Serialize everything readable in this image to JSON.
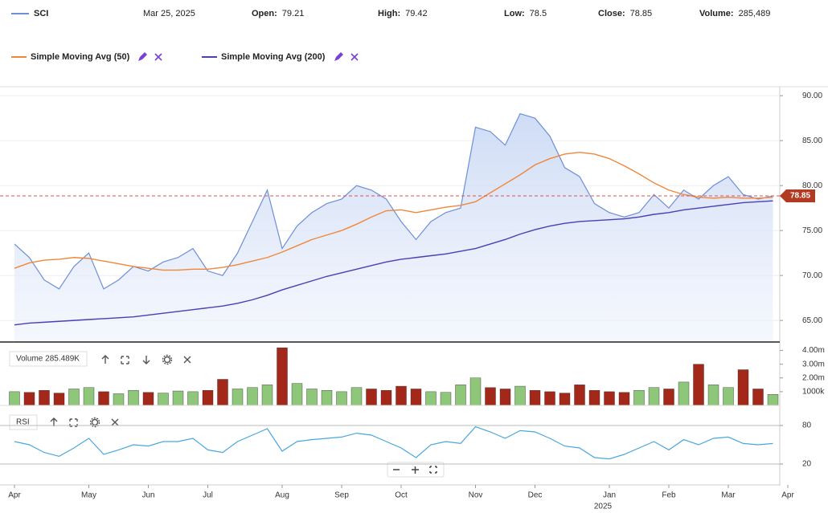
{
  "header": {
    "date": "Mar 25, 2025",
    "fields": [
      {
        "label": "Open:",
        "value": 79.21
      },
      {
        "label": "High:",
        "value": 79.42
      },
      {
        "label": "Low:",
        "value": 78.5
      },
      {
        "label": "Close:",
        "value": 78.85
      },
      {
        "label": "Volume:",
        "value": 285489,
        "value_label": "285,489"
      }
    ]
  },
  "chart_data": [
    {
      "type": "line",
      "ylim": [
        62.6,
        91
      ],
      "yticks": [
        {
          "value": 65,
          "label": "65.00"
        },
        {
          "value": 70,
          "label": "70.00"
        },
        {
          "value": 75,
          "label": "75.00"
        },
        {
          "value": 80,
          "label": "80.00"
        },
        {
          "value": 85,
          "label": "85.00"
        },
        {
          "value": 90,
          "label": "90.00"
        }
      ],
      "grid": true,
      "series": [
        {
          "name": "SCI",
          "color": "#6d8fd8",
          "area": true,
          "values": [
            73.5,
            72.0,
            69.5,
            68.5,
            71.0,
            72.5,
            68.5,
            69.5,
            71.0,
            70.5,
            71.5,
            72.0,
            73.0,
            70.5,
            70.0,
            72.5,
            76.0,
            79.5,
            73.0,
            75.5,
            77.0,
            78.0,
            78.5,
            80.0,
            79.5,
            78.5,
            76.0,
            74.0,
            76.0,
            77.0,
            77.5,
            86.5,
            86.0,
            84.5,
            88.0,
            87.5,
            85.5,
            82.0,
            81.0,
            78.0,
            77.0,
            76.5,
            77.0,
            79.0,
            77.5,
            79.5,
            78.5,
            80.0,
            81.0,
            79.0,
            78.5,
            78.85,
            null
          ]
        },
        {
          "name": "Simple Moving Avg (50)",
          "color": "#f0873a",
          "values": [
            70.8,
            71.4,
            71.7,
            71.8,
            72.0,
            71.9,
            71.6,
            71.3,
            71.0,
            70.8,
            70.6,
            70.6,
            70.7,
            70.7,
            70.9,
            71.2,
            71.6,
            72.0,
            72.6,
            73.3,
            74.0,
            74.5,
            75.0,
            75.7,
            76.5,
            77.2,
            77.3,
            77.0,
            77.3,
            77.6,
            77.8,
            78.2,
            79.2,
            80.2,
            81.2,
            82.3,
            83.0,
            83.5,
            83.7,
            83.5,
            83.0,
            82.2,
            81.3,
            80.3,
            79.5,
            79.0,
            78.7,
            78.6,
            78.7,
            78.6,
            78.6,
            78.7,
            null
          ]
        },
        {
          "name": "Simple Moving Avg (200)",
          "color": "#4a3fb3",
          "values": [
            64.5,
            64.7,
            64.8,
            64.9,
            65.0,
            65.1,
            65.2,
            65.3,
            65.4,
            65.6,
            65.8,
            66.0,
            66.2,
            66.4,
            66.6,
            66.9,
            67.3,
            67.8,
            68.4,
            68.9,
            69.4,
            69.9,
            70.3,
            70.7,
            71.1,
            71.5,
            71.8,
            72.0,
            72.2,
            72.4,
            72.7,
            73.0,
            73.5,
            74.0,
            74.6,
            75.1,
            75.5,
            75.8,
            76.0,
            76.1,
            76.2,
            76.3,
            76.5,
            76.8,
            77.0,
            77.3,
            77.5,
            77.7,
            77.9,
            78.1,
            78.2,
            78.3,
            null
          ]
        }
      ]
    },
    {
      "type": "bar",
      "title": "Volume 285.489K",
      "ylim": [
        0,
        4500000
      ],
      "up_color": "#8ec67a",
      "down_color": "#a3281a",
      "yticks": [
        {
          "value": 1000000,
          "label": "1000k"
        },
        {
          "value": 2000000,
          "label": "2.00m"
        },
        {
          "value": 3000000,
          "label": "3.00m"
        },
        {
          "value": 4000000,
          "label": "4.00m"
        }
      ],
      "values": [
        1000000,
        950000,
        1100000,
        900000,
        1200000,
        1300000,
        1000000,
        850000,
        1100000,
        950000,
        900000,
        1050000,
        1000000,
        1100000,
        1900000,
        1200000,
        1300000,
        1500000,
        4200000,
        1600000,
        1200000,
        1100000,
        1000000,
        1300000,
        1200000,
        1100000,
        1400000,
        1200000,
        1000000,
        950000,
        1500000,
        2000000,
        1300000,
        1200000,
        1400000,
        1100000,
        1000000,
        900000,
        1500000,
        1100000,
        1000000,
        950000,
        1100000,
        1300000,
        1200000,
        1700000,
        3000000,
        1500000,
        1300000,
        2600000,
        1200000,
        800000,
        null
      ]
    },
    {
      "type": "line",
      "title": "RSI",
      "ylim": [
        -7.5,
        95
      ],
      "yticks": [
        20,
        80
      ],
      "grid": true,
      "categories": [
        "Apr",
        null,
        null,
        null,
        null,
        "May",
        null,
        null,
        null,
        "Jun",
        null,
        null,
        null,
        "Jul",
        null,
        null,
        null,
        null,
        "Aug",
        null,
        null,
        null,
        "Sep",
        null,
        null,
        null,
        "Oct",
        null,
        null,
        null,
        null,
        "Nov",
        null,
        null,
        null,
        "Dec",
        null,
        null,
        null,
        null,
        "Jan",
        null,
        null,
        null,
        "Feb",
        null,
        null,
        null,
        "Mar",
        null,
        null,
        null,
        "Apr"
      ],
      "year_label": "2025",
      "series": [
        {
          "color": "#4aa6de",
          "values": [
            55,
            50,
            38,
            32,
            45,
            60,
            35,
            42,
            50,
            48,
            55,
            55,
            60,
            42,
            38,
            55,
            65,
            75,
            40,
            55,
            58,
            60,
            62,
            68,
            65,
            55,
            45,
            30,
            50,
            55,
            52,
            78,
            70,
            60,
            72,
            70,
            60,
            48,
            45,
            30,
            28,
            35,
            45,
            55,
            42,
            58,
            50,
            60,
            62,
            52,
            50,
            52,
            null
          ]
        }
      ]
    }
  ]
}
